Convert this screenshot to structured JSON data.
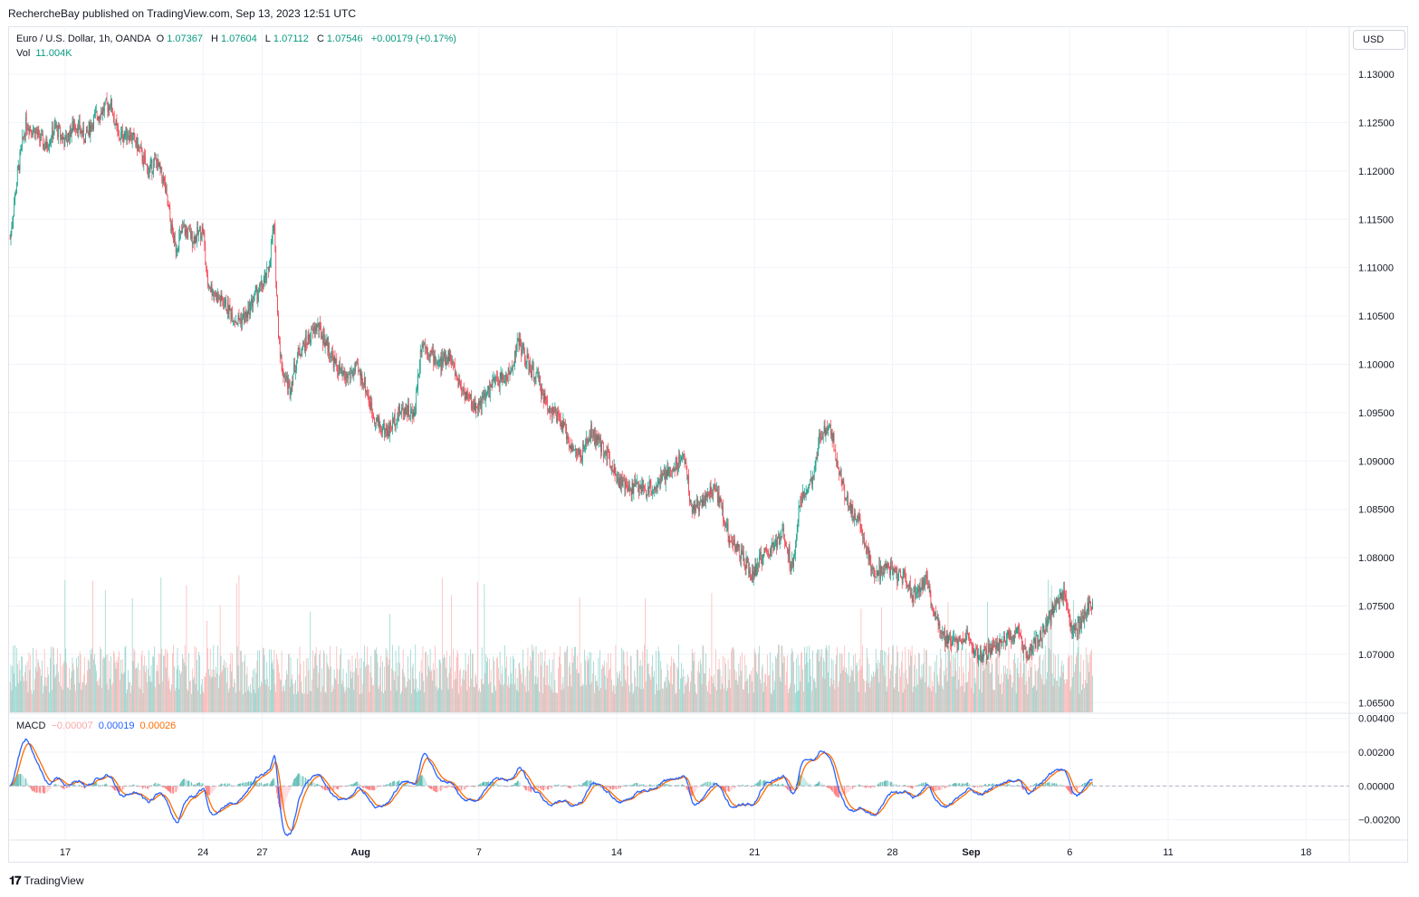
{
  "header": {
    "published": "RechercheBay published on TradingView.com, Sep 13, 2023 12:51 UTC"
  },
  "legend": {
    "symbol": "Euro / U.S. Dollar, 1h, OANDA",
    "o_label": "O",
    "o": "1.07367",
    "h_label": "H",
    "h": "1.07604",
    "l_label": "L",
    "l": "1.07112",
    "c_label": "C",
    "c": "1.07546",
    "change": "+0.00179 (+0.17%)",
    "vol_label": "Vol",
    "vol": "11.004K"
  },
  "currency_button": "USD",
  "macd_legend": {
    "name": "MACD",
    "hist": "−0.00007",
    "macd": "0.00019",
    "signal": "0.00026"
  },
  "brand": {
    "name": "TradingView"
  },
  "colors": {
    "up": "#089981",
    "down": "#f23645",
    "vol_up": "#7fccc3",
    "vol_down": "#f7a9a7",
    "macd": "#2962ff",
    "signal": "#ff6d00",
    "grid": "#f0f3fa"
  },
  "chart_data": {
    "type": "candlestick",
    "symbol": "EURUSD",
    "interval": "1h",
    "price_axis": {
      "ticks": [
        "1.13000",
        "1.12500",
        "1.12000",
        "1.11500",
        "1.11000",
        "1.10500",
        "1.10000",
        "1.09500",
        "1.09000",
        "1.08500",
        "1.08000",
        "1.07500",
        "1.07000",
        "1.06500"
      ],
      "range": [
        1.064,
        1.133
      ]
    },
    "macd_axis": {
      "ticks": [
        "0.00400",
        "0.00200",
        "0.00000",
        "−0.00200"
      ],
      "range": [
        -0.0032,
        0.0042
      ]
    },
    "x_axis": {
      "ticks": [
        {
          "label": "17",
          "day": 0,
          "bold": false
        },
        {
          "label": "24",
          "day": 7,
          "bold": false
        },
        {
          "label": "27",
          "day": 10,
          "bold": false
        },
        {
          "label": "Aug",
          "day": 15,
          "bold": true
        },
        {
          "label": "7",
          "day": 21,
          "bold": false
        },
        {
          "label": "14",
          "day": 28,
          "bold": false
        },
        {
          "label": "21",
          "day": 35,
          "bold": false
        },
        {
          "label": "28",
          "day": 42,
          "bold": false
        },
        {
          "label": "Sep",
          "day": 46,
          "bold": true
        },
        {
          "label": "6",
          "day": 51,
          "bold": false
        },
        {
          "label": "11",
          "day": 56,
          "bold": false
        },
        {
          "label": "18",
          "day": 63,
          "bold": false
        }
      ]
    },
    "price_path": [
      [
        -2.8,
        1.113
      ],
      [
        -2.4,
        1.12
      ],
      [
        -2.0,
        1.125
      ],
      [
        -1.5,
        1.124
      ],
      [
        -1.0,
        1.1225
      ],
      [
        -0.5,
        1.1245
      ],
      [
        0.0,
        1.123
      ],
      [
        0.5,
        1.125
      ],
      [
        1.0,
        1.1235
      ],
      [
        1.5,
        1.1255
      ],
      [
        2.0,
        1.1265
      ],
      [
        2.3,
        1.127
      ],
      [
        2.7,
        1.1235
      ],
      [
        3.2,
        1.124
      ],
      [
        3.7,
        1.1225
      ],
      [
        4.2,
        1.12
      ],
      [
        4.6,
        1.121
      ],
      [
        5.0,
        1.119
      ],
      [
        5.4,
        1.114
      ],
      [
        5.6,
        1.112
      ],
      [
        6.0,
        1.114
      ],
      [
        6.5,
        1.113
      ],
      [
        7.0,
        1.114
      ],
      [
        7.2,
        1.1085
      ],
      [
        7.7,
        1.107
      ],
      [
        8.2,
        1.106
      ],
      [
        8.7,
        1.1045
      ],
      [
        9.2,
        1.105
      ],
      [
        9.6,
        1.107
      ],
      [
        10.0,
        1.108
      ],
      [
        10.3,
        1.1095
      ],
      [
        10.6,
        1.1145
      ],
      [
        10.8,
        1.104
      ],
      [
        11.0,
        1.0995
      ],
      [
        11.4,
        1.0975
      ],
      [
        11.8,
        1.101
      ],
      [
        12.3,
        1.1025
      ],
      [
        12.8,
        1.104
      ],
      [
        13.3,
        1.102
      ],
      [
        13.7,
        1.1
      ],
      [
        14.2,
        1.0985
      ],
      [
        14.8,
        1.0995
      ],
      [
        15.2,
        1.098
      ],
      [
        15.6,
        1.095
      ],
      [
        16.0,
        1.0935
      ],
      [
        16.4,
        1.093
      ],
      [
        16.9,
        1.095
      ],
      [
        17.3,
        1.0955
      ],
      [
        17.7,
        1.0945
      ],
      [
        18.1,
        1.1025
      ],
      [
        18.6,
        1.101
      ],
      [
        19.0,
        1.1
      ],
      [
        19.5,
        1.101
      ],
      [
        19.9,
        1.0985
      ],
      [
        20.3,
        1.097
      ],
      [
        20.8,
        1.0955
      ],
      [
        21.3,
        1.0965
      ],
      [
        21.7,
        1.098
      ],
      [
        22.2,
        1.0985
      ],
      [
        22.6,
        1.099
      ],
      [
        23.0,
        1.1025
      ],
      [
        23.2,
        1.1015
      ],
      [
        23.6,
        1.0995
      ],
      [
        24.0,
        1.0985
      ],
      [
        24.4,
        1.096
      ],
      [
        24.8,
        1.095
      ],
      [
        25.3,
        1.0935
      ],
      [
        25.8,
        1.091
      ],
      [
        26.2,
        1.0905
      ],
      [
        26.7,
        1.093
      ],
      [
        27.2,
        1.0915
      ],
      [
        27.6,
        1.0905
      ],
      [
        28.1,
        1.088
      ],
      [
        28.6,
        1.087
      ],
      [
        29.0,
        1.0875
      ],
      [
        29.5,
        1.087
      ],
      [
        30.0,
        1.0875
      ],
      [
        30.5,
        1.0885
      ],
      [
        31.0,
        1.0895
      ],
      [
        31.4,
        1.091
      ],
      [
        31.8,
        1.085
      ],
      [
        32.2,
        1.0855
      ],
      [
        32.6,
        1.0865
      ],
      [
        33.0,
        1.087
      ],
      [
        33.3,
        1.0855
      ],
      [
        33.7,
        1.082
      ],
      [
        34.1,
        1.081
      ],
      [
        34.5,
        1.0795
      ],
      [
        34.9,
        1.078
      ],
      [
        35.3,
        1.08
      ],
      [
        35.7,
        1.0805
      ],
      [
        36.1,
        1.0815
      ],
      [
        36.5,
        1.0825
      ],
      [
        36.9,
        1.079
      ],
      [
        37.3,
        1.0855
      ],
      [
        37.7,
        1.0875
      ],
      [
        38.0,
        1.088
      ],
      [
        38.3,
        1.0925
      ],
      [
        38.8,
        1.094
      ],
      [
        39.2,
        1.09
      ],
      [
        39.6,
        1.0865
      ],
      [
        40.0,
        1.0845
      ],
      [
        40.3,
        1.084
      ],
      [
        40.6,
        1.0815
      ],
      [
        41.0,
        1.0785
      ],
      [
        41.5,
        1.0785
      ],
      [
        41.9,
        1.079
      ],
      [
        42.3,
        1.078
      ],
      [
        42.7,
        1.078
      ],
      [
        43.0,
        1.076
      ],
      [
        43.3,
        1.077
      ],
      [
        43.7,
        1.0775
      ],
      [
        44.2,
        1.074
      ],
      [
        44.7,
        1.0715
      ],
      [
        45.2,
        1.0715
      ],
      [
        45.7,
        1.072
      ],
      [
        46.2,
        1.07
      ],
      [
        46.6,
        1.07
      ],
      [
        47.0,
        1.0705
      ],
      [
        47.5,
        1.071
      ],
      [
        48.0,
        1.072
      ],
      [
        48.4,
        1.072
      ],
      [
        48.8,
        1.07
      ],
      [
        49.2,
        1.071
      ],
      [
        49.6,
        1.072
      ],
      [
        50.0,
        1.074
      ],
      [
        50.4,
        1.0755
      ],
      [
        50.7,
        1.076
      ],
      [
        51.0,
        1.073
      ],
      [
        51.4,
        1.0725
      ],
      [
        51.8,
        1.0745
      ],
      [
        52.2,
        1.0755
      ]
    ],
    "note": "price_path approximates visible hourly closes; day index 0 = Jul 17"
  }
}
